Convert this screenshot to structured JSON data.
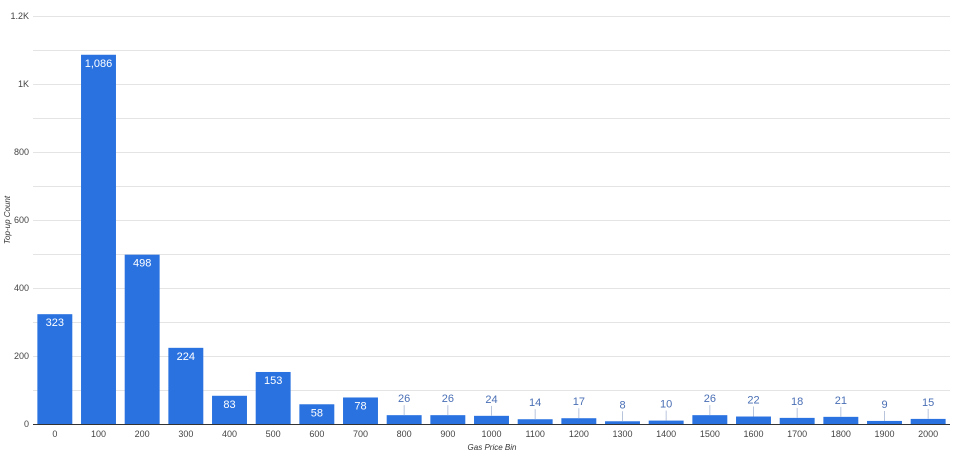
{
  "chart_data": {
    "type": "bar",
    "title": "",
    "xlabel": "Gas Price Bin",
    "ylabel": "Top-up Count",
    "categories": [
      "0",
      "100",
      "200",
      "300",
      "400",
      "500",
      "600",
      "700",
      "800",
      "900",
      "1000",
      "1100",
      "1200",
      "1300",
      "1400",
      "1500",
      "1600",
      "1700",
      "1800",
      "1900",
      "2000"
    ],
    "values": [
      323,
      1086,
      498,
      224,
      83,
      153,
      58,
      78,
      26,
      26,
      24,
      14,
      17,
      8,
      10,
      26,
      22,
      18,
      21,
      9,
      15
    ],
    "data_labels": [
      "323",
      "1,086",
      "498",
      "224",
      "83",
      "153",
      "58",
      "78",
      "26",
      "26",
      "24",
      "14",
      "17",
      "8",
      "10",
      "26",
      "22",
      "18",
      "21",
      "9",
      "15"
    ],
    "ylim": [
      0,
      1200
    ],
    "yticks": [
      0,
      200,
      400,
      600,
      800,
      1000,
      1200
    ],
    "ytick_labels": [
      "0",
      "200",
      "400",
      "600",
      "800",
      "1K",
      "1.2K"
    ],
    "minor_grid_step": 100,
    "grid": true,
    "legend": "none",
    "bar_color": "#2a72e0",
    "outside_label_color": "#4a6fb5"
  }
}
